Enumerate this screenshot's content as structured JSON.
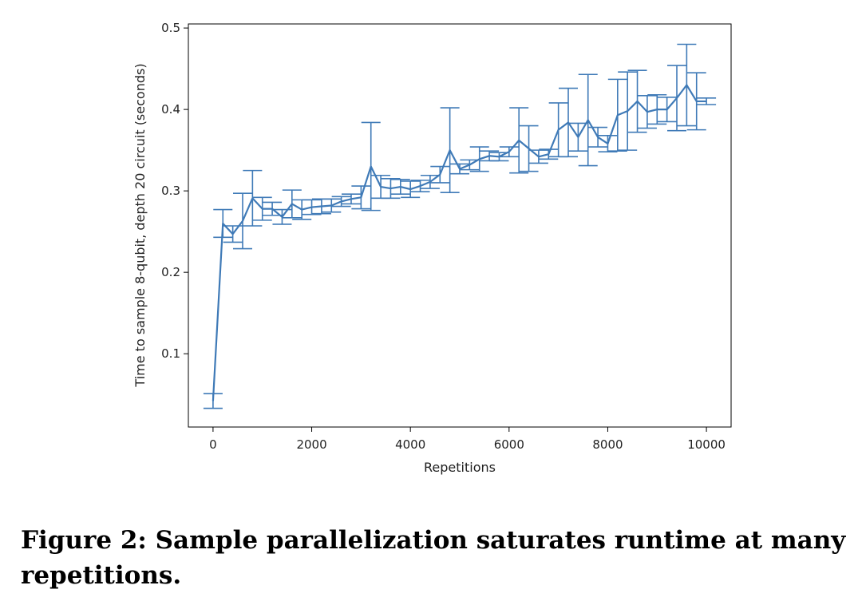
{
  "caption": "Figure 2: Sample parallelization saturates runtime at many repetitions.",
  "chart_data": {
    "type": "line",
    "title": "",
    "xlabel": "Repetitions",
    "ylabel": "Time to sample 8-qubit, depth 20 circuit (seconds)",
    "xlim": [
      -500,
      10500
    ],
    "ylim": [
      0.01,
      0.505
    ],
    "xticks": [
      0,
      2000,
      4000,
      6000,
      8000,
      10000
    ],
    "yticks": [
      0.1,
      0.2,
      0.3,
      0.4,
      0.5
    ],
    "grid": false,
    "legend": "none",
    "color": "#3f7ab7",
    "series": [
      {
        "x": [
          0,
          200,
          400,
          600,
          800,
          1000,
          1200,
          1400,
          1600,
          1800,
          2000,
          2200,
          2400,
          2600,
          2800,
          3000,
          3200,
          3400,
          3600,
          3800,
          4000,
          4200,
          4400,
          4600,
          4800,
          5000,
          5200,
          5400,
          5600,
          5800,
          6000,
          6200,
          6400,
          6600,
          6800,
          7000,
          7200,
          7400,
          7600,
          7800,
          8000,
          8200,
          8400,
          8600,
          8800,
          9000,
          9200,
          9400,
          9600,
          9800,
          10000
        ],
        "y": [
          0.042,
          0.26,
          0.247,
          0.263,
          0.291,
          0.278,
          0.278,
          0.268,
          0.284,
          0.277,
          0.28,
          0.281,
          0.282,
          0.287,
          0.29,
          0.292,
          0.33,
          0.305,
          0.303,
          0.305,
          0.302,
          0.306,
          0.311,
          0.32,
          0.35,
          0.327,
          0.332,
          0.339,
          0.343,
          0.342,
          0.348,
          0.362,
          0.352,
          0.342,
          0.345,
          0.375,
          0.384,
          0.366,
          0.387,
          0.366,
          0.358,
          0.393,
          0.398,
          0.41,
          0.397,
          0.4,
          0.4,
          0.414,
          0.43,
          0.41,
          0.41
        ],
        "err": [
          0.009,
          0.017,
          0.01,
          0.034,
          0.034,
          0.014,
          0.008,
          0.009,
          0.017,
          0.012,
          0.009,
          0.009,
          0.008,
          0.006,
          0.006,
          0.014,
          0.054,
          0.014,
          0.012,
          0.009,
          0.01,
          0.007,
          0.008,
          0.01,
          0.052,
          0.006,
          0.006,
          0.015,
          0.006,
          0.005,
          0.006,
          0.04,
          0.028,
          0.008,
          0.006,
          0.033,
          0.042,
          0.017,
          0.056,
          0.012,
          0.01,
          0.044,
          0.048,
          0.038,
          0.02,
          0.018,
          0.015,
          0.04,
          0.05,
          0.035,
          0.004
        ]
      }
    ]
  }
}
